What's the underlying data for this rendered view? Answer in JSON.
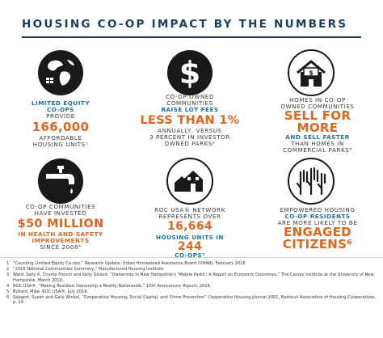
{
  "title": "HOUSING CO-OP IMPACT BY THE NUMBERS",
  "colors": {
    "navy": "#1b3d5c",
    "orange": "#e0651d",
    "blue": "#1f6fa3",
    "icon": "#1a1a1a"
  },
  "stats": [
    {
      "icon": "globe-icon",
      "lines": [
        "Limited Equity",
        "Co-ops",
        "provide",
        "166,000",
        "affordable",
        "housing units¹"
      ]
    },
    {
      "icon": "dollar-icon",
      "lines": [
        "Co-op owned",
        "communities",
        "raise lot fees",
        "LESS THAN 1%",
        "annually, versus",
        "3 percent in investor",
        "owned parks²"
      ]
    },
    {
      "icon": "house-for-sale-icon",
      "lines": [
        "Homes in co-op",
        "owned communities",
        "SELL FOR",
        "MORE",
        "and sell faster",
        "than homes in",
        "commercial parks³"
      ]
    },
    {
      "icon": "faucet-icon",
      "lines": [
        "Co-op communities",
        "have invested",
        "$50 MILLION",
        "in health and safety",
        "improvements",
        "since 2008⁴"
      ]
    },
    {
      "icon": "houses-icon",
      "lines": [
        "ROC USA® network",
        "represents over",
        "16,664",
        "housing units in",
        "244",
        "co-ops⁵"
      ]
    },
    {
      "icon": "raised-hands-icon",
      "lines": [
        "Empowered housing",
        "co-op residents",
        "are more likely to be",
        "ENGAGED",
        "CITIZENS⁶"
      ]
    }
  ],
  "footnotes": [
    {
      "num": "1",
      "text": "“Counting Limited Equity Co-ops,” Research Update, Urban Homestead Assistance Board (UHAB), February 2016"
    },
    {
      "num": "2",
      "text": "“2016 National Communities Summary,” Manufactured Housing Institute"
    },
    {
      "num": "3",
      "text": "Ward, Sally K, Charlie French and Kelly Giraud. “Ownership in New Hampshire’s ‘Mobile Parks’: A Report on Economic Outcomes,” The Carsey Institute at the University of New Hampshire, March 2010."
    },
    {
      "num": "4",
      "text": "ROC USA®, “Making Resident Ownership a Reality Nationwide,”",
      "italic": "10th Anniversary Report",
      "after": ", 2018."
    },
    {
      "num": "5",
      "text": "Bullard, Mike. ROC USA®, July 2019."
    },
    {
      "num": "6",
      "text": "Saegert, Susan and Gary Winkel, “Cooperative Housing, Social Capital, and Crime Prevention”",
      "italic": "Cooperative Housing Journal 2001",
      "after": ", National Association of Housing Cooperatives, p. 14"
    }
  ]
}
